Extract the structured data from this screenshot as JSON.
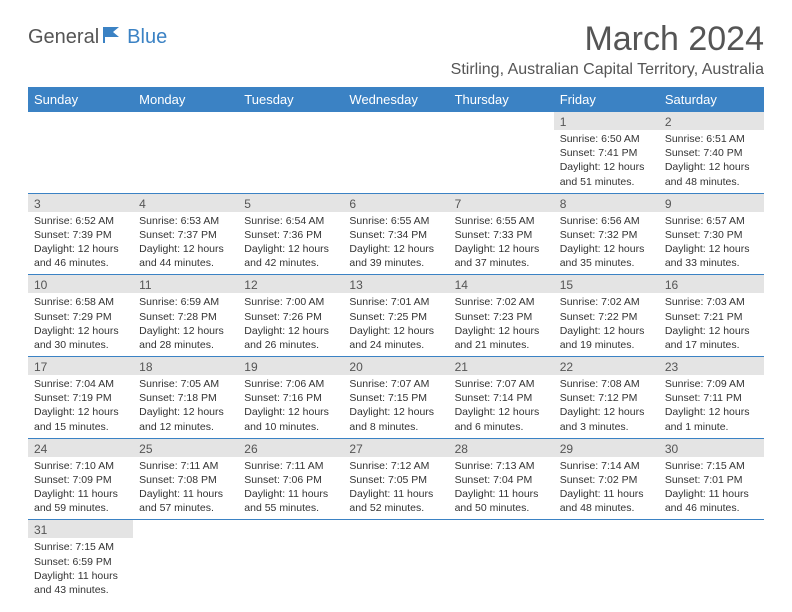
{
  "logo": {
    "part1": "General",
    "part2": "Blue"
  },
  "title": "March 2024",
  "subtitle": "Stirling, Australian Capital Territory, Australia",
  "day_header_bg": "#3b82c4",
  "day_header_fg": "#ffffff",
  "divider_color": "#3b82c4",
  "daynum_bg": "#e4e4e4",
  "text_color": "#333333",
  "days": [
    "Sunday",
    "Monday",
    "Tuesday",
    "Wednesday",
    "Thursday",
    "Friday",
    "Saturday"
  ],
  "weeks": [
    [
      {
        "n": "",
        "sr": "",
        "ss": "",
        "dl": ""
      },
      {
        "n": "",
        "sr": "",
        "ss": "",
        "dl": ""
      },
      {
        "n": "",
        "sr": "",
        "ss": "",
        "dl": ""
      },
      {
        "n": "",
        "sr": "",
        "ss": "",
        "dl": ""
      },
      {
        "n": "",
        "sr": "",
        "ss": "",
        "dl": ""
      },
      {
        "n": "1",
        "sr": "Sunrise: 6:50 AM",
        "ss": "Sunset: 7:41 PM",
        "dl": "Daylight: 12 hours and 51 minutes."
      },
      {
        "n": "2",
        "sr": "Sunrise: 6:51 AM",
        "ss": "Sunset: 7:40 PM",
        "dl": "Daylight: 12 hours and 48 minutes."
      }
    ],
    [
      {
        "n": "3",
        "sr": "Sunrise: 6:52 AM",
        "ss": "Sunset: 7:39 PM",
        "dl": "Daylight: 12 hours and 46 minutes."
      },
      {
        "n": "4",
        "sr": "Sunrise: 6:53 AM",
        "ss": "Sunset: 7:37 PM",
        "dl": "Daylight: 12 hours and 44 minutes."
      },
      {
        "n": "5",
        "sr": "Sunrise: 6:54 AM",
        "ss": "Sunset: 7:36 PM",
        "dl": "Daylight: 12 hours and 42 minutes."
      },
      {
        "n": "6",
        "sr": "Sunrise: 6:55 AM",
        "ss": "Sunset: 7:34 PM",
        "dl": "Daylight: 12 hours and 39 minutes."
      },
      {
        "n": "7",
        "sr": "Sunrise: 6:55 AM",
        "ss": "Sunset: 7:33 PM",
        "dl": "Daylight: 12 hours and 37 minutes."
      },
      {
        "n": "8",
        "sr": "Sunrise: 6:56 AM",
        "ss": "Sunset: 7:32 PM",
        "dl": "Daylight: 12 hours and 35 minutes."
      },
      {
        "n": "9",
        "sr": "Sunrise: 6:57 AM",
        "ss": "Sunset: 7:30 PM",
        "dl": "Daylight: 12 hours and 33 minutes."
      }
    ],
    [
      {
        "n": "10",
        "sr": "Sunrise: 6:58 AM",
        "ss": "Sunset: 7:29 PM",
        "dl": "Daylight: 12 hours and 30 minutes."
      },
      {
        "n": "11",
        "sr": "Sunrise: 6:59 AM",
        "ss": "Sunset: 7:28 PM",
        "dl": "Daylight: 12 hours and 28 minutes."
      },
      {
        "n": "12",
        "sr": "Sunrise: 7:00 AM",
        "ss": "Sunset: 7:26 PM",
        "dl": "Daylight: 12 hours and 26 minutes."
      },
      {
        "n": "13",
        "sr": "Sunrise: 7:01 AM",
        "ss": "Sunset: 7:25 PM",
        "dl": "Daylight: 12 hours and 24 minutes."
      },
      {
        "n": "14",
        "sr": "Sunrise: 7:02 AM",
        "ss": "Sunset: 7:23 PM",
        "dl": "Daylight: 12 hours and 21 minutes."
      },
      {
        "n": "15",
        "sr": "Sunrise: 7:02 AM",
        "ss": "Sunset: 7:22 PM",
        "dl": "Daylight: 12 hours and 19 minutes."
      },
      {
        "n": "16",
        "sr": "Sunrise: 7:03 AM",
        "ss": "Sunset: 7:21 PM",
        "dl": "Daylight: 12 hours and 17 minutes."
      }
    ],
    [
      {
        "n": "17",
        "sr": "Sunrise: 7:04 AM",
        "ss": "Sunset: 7:19 PM",
        "dl": "Daylight: 12 hours and 15 minutes."
      },
      {
        "n": "18",
        "sr": "Sunrise: 7:05 AM",
        "ss": "Sunset: 7:18 PM",
        "dl": "Daylight: 12 hours and 12 minutes."
      },
      {
        "n": "19",
        "sr": "Sunrise: 7:06 AM",
        "ss": "Sunset: 7:16 PM",
        "dl": "Daylight: 12 hours and 10 minutes."
      },
      {
        "n": "20",
        "sr": "Sunrise: 7:07 AM",
        "ss": "Sunset: 7:15 PM",
        "dl": "Daylight: 12 hours and 8 minutes."
      },
      {
        "n": "21",
        "sr": "Sunrise: 7:07 AM",
        "ss": "Sunset: 7:14 PM",
        "dl": "Daylight: 12 hours and 6 minutes."
      },
      {
        "n": "22",
        "sr": "Sunrise: 7:08 AM",
        "ss": "Sunset: 7:12 PM",
        "dl": "Daylight: 12 hours and 3 minutes."
      },
      {
        "n": "23",
        "sr": "Sunrise: 7:09 AM",
        "ss": "Sunset: 7:11 PM",
        "dl": "Daylight: 12 hours and 1 minute."
      }
    ],
    [
      {
        "n": "24",
        "sr": "Sunrise: 7:10 AM",
        "ss": "Sunset: 7:09 PM",
        "dl": "Daylight: 11 hours and 59 minutes."
      },
      {
        "n": "25",
        "sr": "Sunrise: 7:11 AM",
        "ss": "Sunset: 7:08 PM",
        "dl": "Daylight: 11 hours and 57 minutes."
      },
      {
        "n": "26",
        "sr": "Sunrise: 7:11 AM",
        "ss": "Sunset: 7:06 PM",
        "dl": "Daylight: 11 hours and 55 minutes."
      },
      {
        "n": "27",
        "sr": "Sunrise: 7:12 AM",
        "ss": "Sunset: 7:05 PM",
        "dl": "Daylight: 11 hours and 52 minutes."
      },
      {
        "n": "28",
        "sr": "Sunrise: 7:13 AM",
        "ss": "Sunset: 7:04 PM",
        "dl": "Daylight: 11 hours and 50 minutes."
      },
      {
        "n": "29",
        "sr": "Sunrise: 7:14 AM",
        "ss": "Sunset: 7:02 PM",
        "dl": "Daylight: 11 hours and 48 minutes."
      },
      {
        "n": "30",
        "sr": "Sunrise: 7:15 AM",
        "ss": "Sunset: 7:01 PM",
        "dl": "Daylight: 11 hours and 46 minutes."
      }
    ],
    [
      {
        "n": "31",
        "sr": "Sunrise: 7:15 AM",
        "ss": "Sunset: 6:59 PM",
        "dl": "Daylight: 11 hours and 43 minutes."
      },
      {
        "n": "",
        "sr": "",
        "ss": "",
        "dl": ""
      },
      {
        "n": "",
        "sr": "",
        "ss": "",
        "dl": ""
      },
      {
        "n": "",
        "sr": "",
        "ss": "",
        "dl": ""
      },
      {
        "n": "",
        "sr": "",
        "ss": "",
        "dl": ""
      },
      {
        "n": "",
        "sr": "",
        "ss": "",
        "dl": ""
      },
      {
        "n": "",
        "sr": "",
        "ss": "",
        "dl": ""
      }
    ]
  ]
}
